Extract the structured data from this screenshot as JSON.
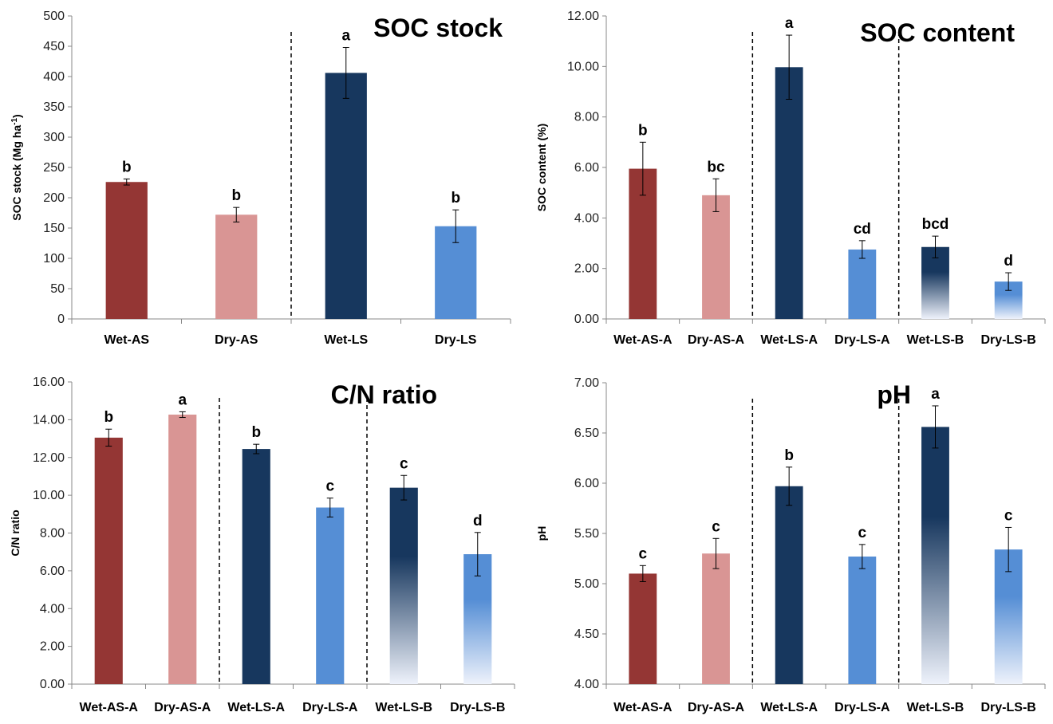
{
  "chart_data": [
    {
      "type": "bar",
      "title": "SOC stock",
      "ylabel": "SOC stock (Mg ha",
      "ylabel_sup": "-1",
      "ylabel_end": ")",
      "ylim": [
        0,
        500
      ],
      "ticks": [
        "0",
        "50",
        "100",
        "150",
        "200",
        "250",
        "300",
        "350",
        "400",
        "450",
        "500"
      ],
      "categories": [
        "Wet-AS",
        "Dry-AS",
        "Wet-LS",
        "Dry-LS"
      ],
      "values": [
        226,
        172,
        406,
        153
      ],
      "errors": [
        5,
        12,
        42,
        27
      ],
      "letters": [
        "b",
        "b",
        "a",
        "b"
      ],
      "dividers": [
        2
      ],
      "colors": [
        "#943634",
        "#d99594",
        "#17375e",
        "#558ed5"
      ],
      "gradient": [
        false,
        false,
        false,
        false
      ]
    },
    {
      "type": "bar",
      "title": "SOC content",
      "ylabel": "SOC content (%)",
      "ylim": [
        0,
        12
      ],
      "ticks": [
        "0.00",
        "2.00",
        "4.00",
        "6.00",
        "8.00",
        "10.00",
        "12.00"
      ],
      "categories": [
        "Wet-AS-A",
        "Dry-AS-A",
        "Wet-LS-A",
        "Dry-LS-A",
        "Wet-LS-B",
        "Dry-LS-B"
      ],
      "values": [
        5.95,
        4.9,
        9.97,
        2.75,
        2.85,
        1.48
      ],
      "errors": [
        1.05,
        0.65,
        1.27,
        0.35,
        0.43,
        0.35
      ],
      "letters": [
        "b",
        "bc",
        "a",
        "cd",
        "bcd",
        "d"
      ],
      "dividers": [
        2,
        4
      ],
      "colors": [
        "#943634",
        "#d99594",
        "#17375e",
        "#558ed5",
        "#17375e",
        "#558ed5"
      ],
      "gradient": [
        false,
        false,
        false,
        false,
        true,
        true
      ]
    },
    {
      "type": "bar",
      "title": "C/N ratio",
      "ylabel": "C/N ratio",
      "ylim": [
        0,
        16
      ],
      "ticks": [
        "0.00",
        "2.00",
        "4.00",
        "6.00",
        "8.00",
        "10.00",
        "12.00",
        "14.00",
        "16.00"
      ],
      "categories": [
        "Wet-AS-A",
        "Dry-AS-A",
        "Wet-LS-A",
        "Dry-LS-A",
        "Wet-LS-B",
        "Dry-LS-B"
      ],
      "values": [
        13.05,
        14.27,
        12.45,
        9.35,
        10.4,
        6.88
      ],
      "errors": [
        0.45,
        0.15,
        0.25,
        0.5,
        0.65,
        1.15
      ],
      "letters": [
        "b",
        "a",
        "b",
        "c",
        "c",
        "d"
      ],
      "dividers": [
        2,
        4
      ],
      "colors": [
        "#943634",
        "#d99594",
        "#17375e",
        "#558ed5",
        "#17375e",
        "#558ed5"
      ],
      "gradient": [
        false,
        false,
        false,
        false,
        true,
        true
      ]
    },
    {
      "type": "bar",
      "title": "pH",
      "ylabel": "pH",
      "ylim": [
        4,
        7
      ],
      "ticks": [
        "4.00",
        "4.50",
        "5.00",
        "5.50",
        "6.00",
        "6.50",
        "7.00"
      ],
      "categories": [
        "Wet-AS-A",
        "Dry-AS-A",
        "Wet-LS-A",
        "Dry-LS-A",
        "Wet-LS-B",
        "Dry-LS-B"
      ],
      "values": [
        5.1,
        5.3,
        5.97,
        5.27,
        6.56,
        5.34
      ],
      "errors": [
        0.08,
        0.15,
        0.19,
        0.12,
        0.21,
        0.22
      ],
      "letters": [
        "c",
        "c",
        "b",
        "c",
        "a",
        "c"
      ],
      "dividers": [
        2,
        4
      ],
      "colors": [
        "#943634",
        "#d99594",
        "#17375e",
        "#558ed5",
        "#17375e",
        "#558ed5"
      ],
      "gradient": [
        false,
        false,
        false,
        false,
        true,
        true
      ]
    }
  ]
}
